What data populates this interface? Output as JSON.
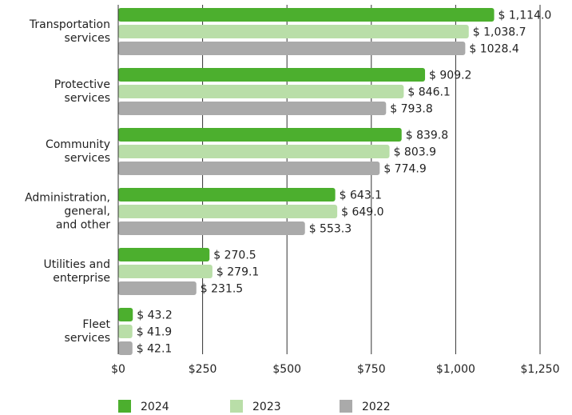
{
  "chart_data": {
    "type": "bar",
    "orientation": "horizontal",
    "categories": [
      [
        "Transportation",
        "services"
      ],
      [
        "Protective",
        "services"
      ],
      [
        "Community",
        "services"
      ],
      [
        "Administration,",
        "general,",
        "and other"
      ],
      [
        "Utilities and",
        "enterprise"
      ],
      [
        "Fleet",
        "services"
      ]
    ],
    "series": [
      {
        "name": "2024",
        "color": "#4caf2e",
        "values": [
          1114.0,
          909.2,
          839.8,
          643.1,
          270.5,
          43.2
        ],
        "value_labels": [
          "$ 1,114.0",
          "$ 909.2",
          "$ 839.8",
          "$ 643.1",
          "$ 270.5",
          "$ 43.2"
        ]
      },
      {
        "name": "2023",
        "color": "#b9dea8",
        "values": [
          1038.7,
          846.1,
          803.9,
          649.0,
          279.1,
          41.9
        ],
        "value_labels": [
          "$ 1,038.7",
          "$ 846.1",
          "$ 803.9",
          "$ 649.0",
          "$ 279.1",
          "$ 41.9"
        ]
      },
      {
        "name": "2022",
        "color": "#aaaaaa",
        "values": [
          1028.4,
          793.8,
          774.9,
          553.3,
          231.5,
          42.1
        ],
        "value_labels": [
          "$ 1028.4",
          "$ 793.8",
          "$ 774.9",
          "$ 553.3",
          "$ 231.5",
          "$ 42.1"
        ]
      }
    ],
    "xlim": [
      0,
      1250
    ],
    "xticks": [
      {
        "value": 0,
        "label": "$0"
      },
      {
        "value": 250,
        "label": "$250"
      },
      {
        "value": 500,
        "label": "$500"
      },
      {
        "value": 750,
        "label": "$750"
      },
      {
        "value": 1000,
        "label": "$1,000"
      },
      {
        "value": 1250,
        "label": "$1,250"
      }
    ],
    "grid": true,
    "legend": "bottom"
  }
}
